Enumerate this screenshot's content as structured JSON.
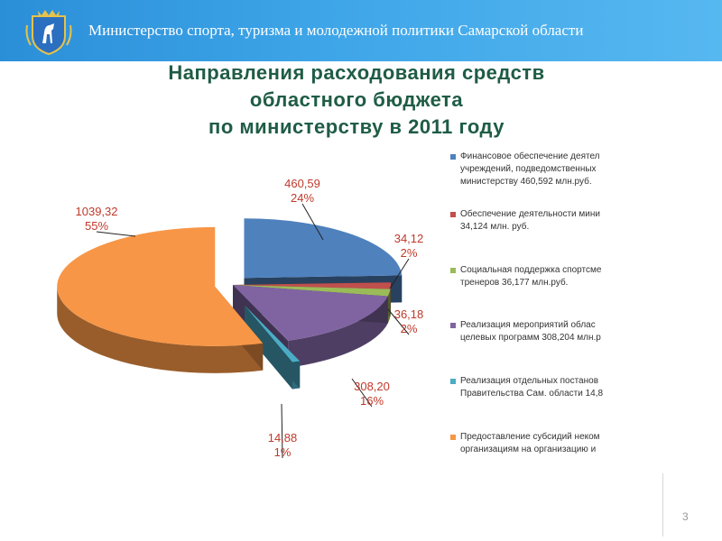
{
  "header": {
    "organization": "Министерство спорта, туризма и молодежной политики Самарской области",
    "emblem_icon": "samara-coat-of-arms-icon"
  },
  "title_lines": [
    "Направления расходования средств",
    "областного бюджета",
    "по министерству в 2011 году"
  ],
  "chart_data": {
    "type": "pie",
    "style": "3d-exploded",
    "slices": [
      {
        "value": 460.59,
        "value_label": "460,59",
        "percent_label": "24%",
        "color": "#4f81bd",
        "legend": [
          "Финансовое обеспечение деятел",
          "учреждений, подведомственных",
          "министерству 460,592 млн.руб."
        ]
      },
      {
        "value": 34.12,
        "value_label": "34,12",
        "percent_label": "2%",
        "color": "#c0504d",
        "legend": [
          "Обеспечение деятельности мини",
          "34,124 млн. руб."
        ]
      },
      {
        "value": 36.18,
        "value_label": "36,18",
        "percent_label": "2%",
        "color": "#9bbb59",
        "legend": [
          "Социальная поддержка спортсме",
          "тренеров 36,177 млн.руб."
        ]
      },
      {
        "value": 308.2,
        "value_label": "308,20",
        "percent_label": "16%",
        "color": "#8064a2",
        "legend": [
          "Реализация мероприятий облас",
          "целевых программ 308,204 млн.р"
        ]
      },
      {
        "value": 14.88,
        "value_label": "14,88",
        "percent_label": "1%",
        "color": "#4bacc6",
        "legend": [
          "Реализация отдельных постанов",
          "Правительства Сам. области 14,8"
        ]
      },
      {
        "value": 1039.32,
        "value_label": "1039,32",
        "percent_label": "55%",
        "color": "#f79646",
        "legend": [
          "Предоставление субсидий неком",
          "организациям на организацию и"
        ]
      }
    ],
    "legend_position": "right"
  },
  "footer": {
    "page_number": "3"
  }
}
